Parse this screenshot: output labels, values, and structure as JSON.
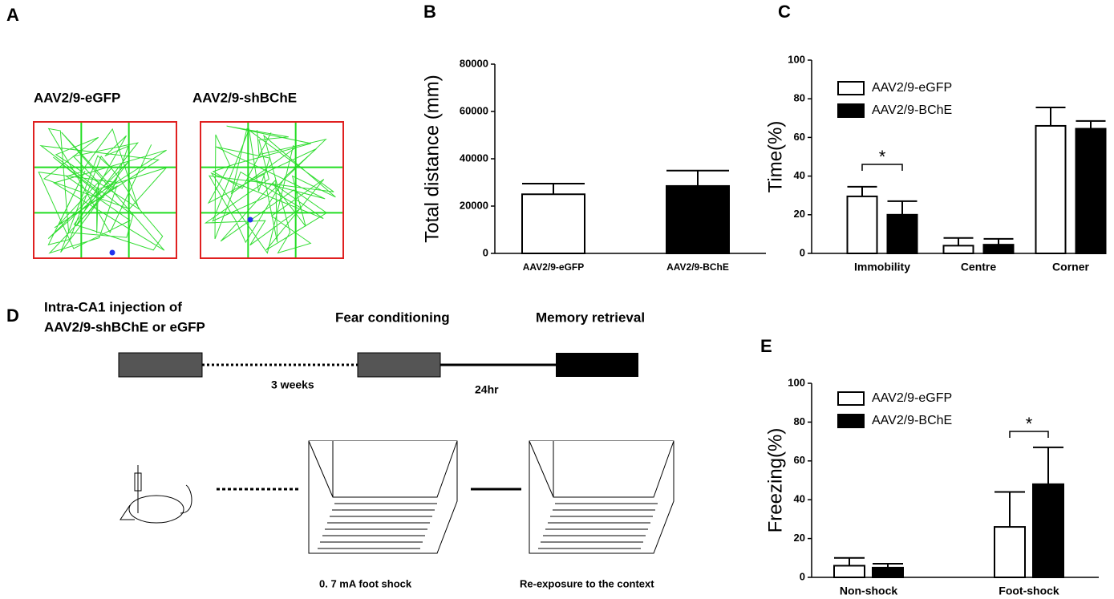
{
  "panel_labels": [
    "A",
    "B",
    "C",
    "D",
    "E"
  ],
  "panel_a": {
    "groups": [
      "AAV2/9-eGFP",
      "AAV2/9-shBChE"
    ]
  },
  "panel_d": {
    "injection": [
      "Intra-CA1 injection of",
      "AAV2/9-shBChE or eGFP"
    ],
    "conditioning": "Fear conditioning",
    "retrieval": "Memory retrieval",
    "interval_1": "3 weeks",
    "interval_2": "24hr",
    "shock_caption": "0. 7 mA foot shock",
    "context_caption": "Re-exposure to the context"
  },
  "chart_data": [
    {
      "type": "bar",
      "ylabel": "Total distance (mm)",
      "categories": [
        "AAV2/9-eGFP",
        "AAV2/9-BChE"
      ],
      "values": [
        25000,
        28500
      ],
      "errors": [
        4500,
        6500
      ],
      "colors": [
        "#ffffff",
        "#000000"
      ],
      "ylim": [
        0,
        80000
      ],
      "yticks": [
        0,
        20000,
        40000,
        60000,
        80000
      ]
    },
    {
      "type": "grouped_bar",
      "ylabel": "Time(%)",
      "categories": [
        "Immobility",
        "Centre",
        "Corner"
      ],
      "series": [
        {
          "name": "AAV2/9-eGFP",
          "color": "#ffffff",
          "values": [
            29.5,
            4,
            66
          ],
          "errors": [
            5,
            4,
            9.5
          ]
        },
        {
          "name": "AAV2/9-BChE",
          "color": "#000000",
          "values": [
            20,
            4.5,
            64.5
          ],
          "errors": [
            7,
            3,
            4
          ]
        }
      ],
      "ylim": [
        0,
        100
      ],
      "yticks": [
        0,
        20,
        40,
        60,
        80,
        100
      ],
      "annotation": "*"
    },
    {
      "type": "grouped_bar",
      "ylabel": "Freezing(%)",
      "categories": [
        "Non-shock",
        "Foot-shock"
      ],
      "series": [
        {
          "name": "AAV2/9-eGFP",
          "color": "#ffffff",
          "values": [
            6,
            26
          ],
          "errors": [
            4,
            18
          ]
        },
        {
          "name": "AAV2/9-BChE",
          "color": "#000000",
          "values": [
            5,
            48
          ],
          "errors": [
            2,
            19
          ]
        }
      ],
      "ylim": [
        0,
        100
      ],
      "yticks": [
        0,
        20,
        40,
        60,
        80,
        100
      ],
      "annotation": "*"
    }
  ]
}
